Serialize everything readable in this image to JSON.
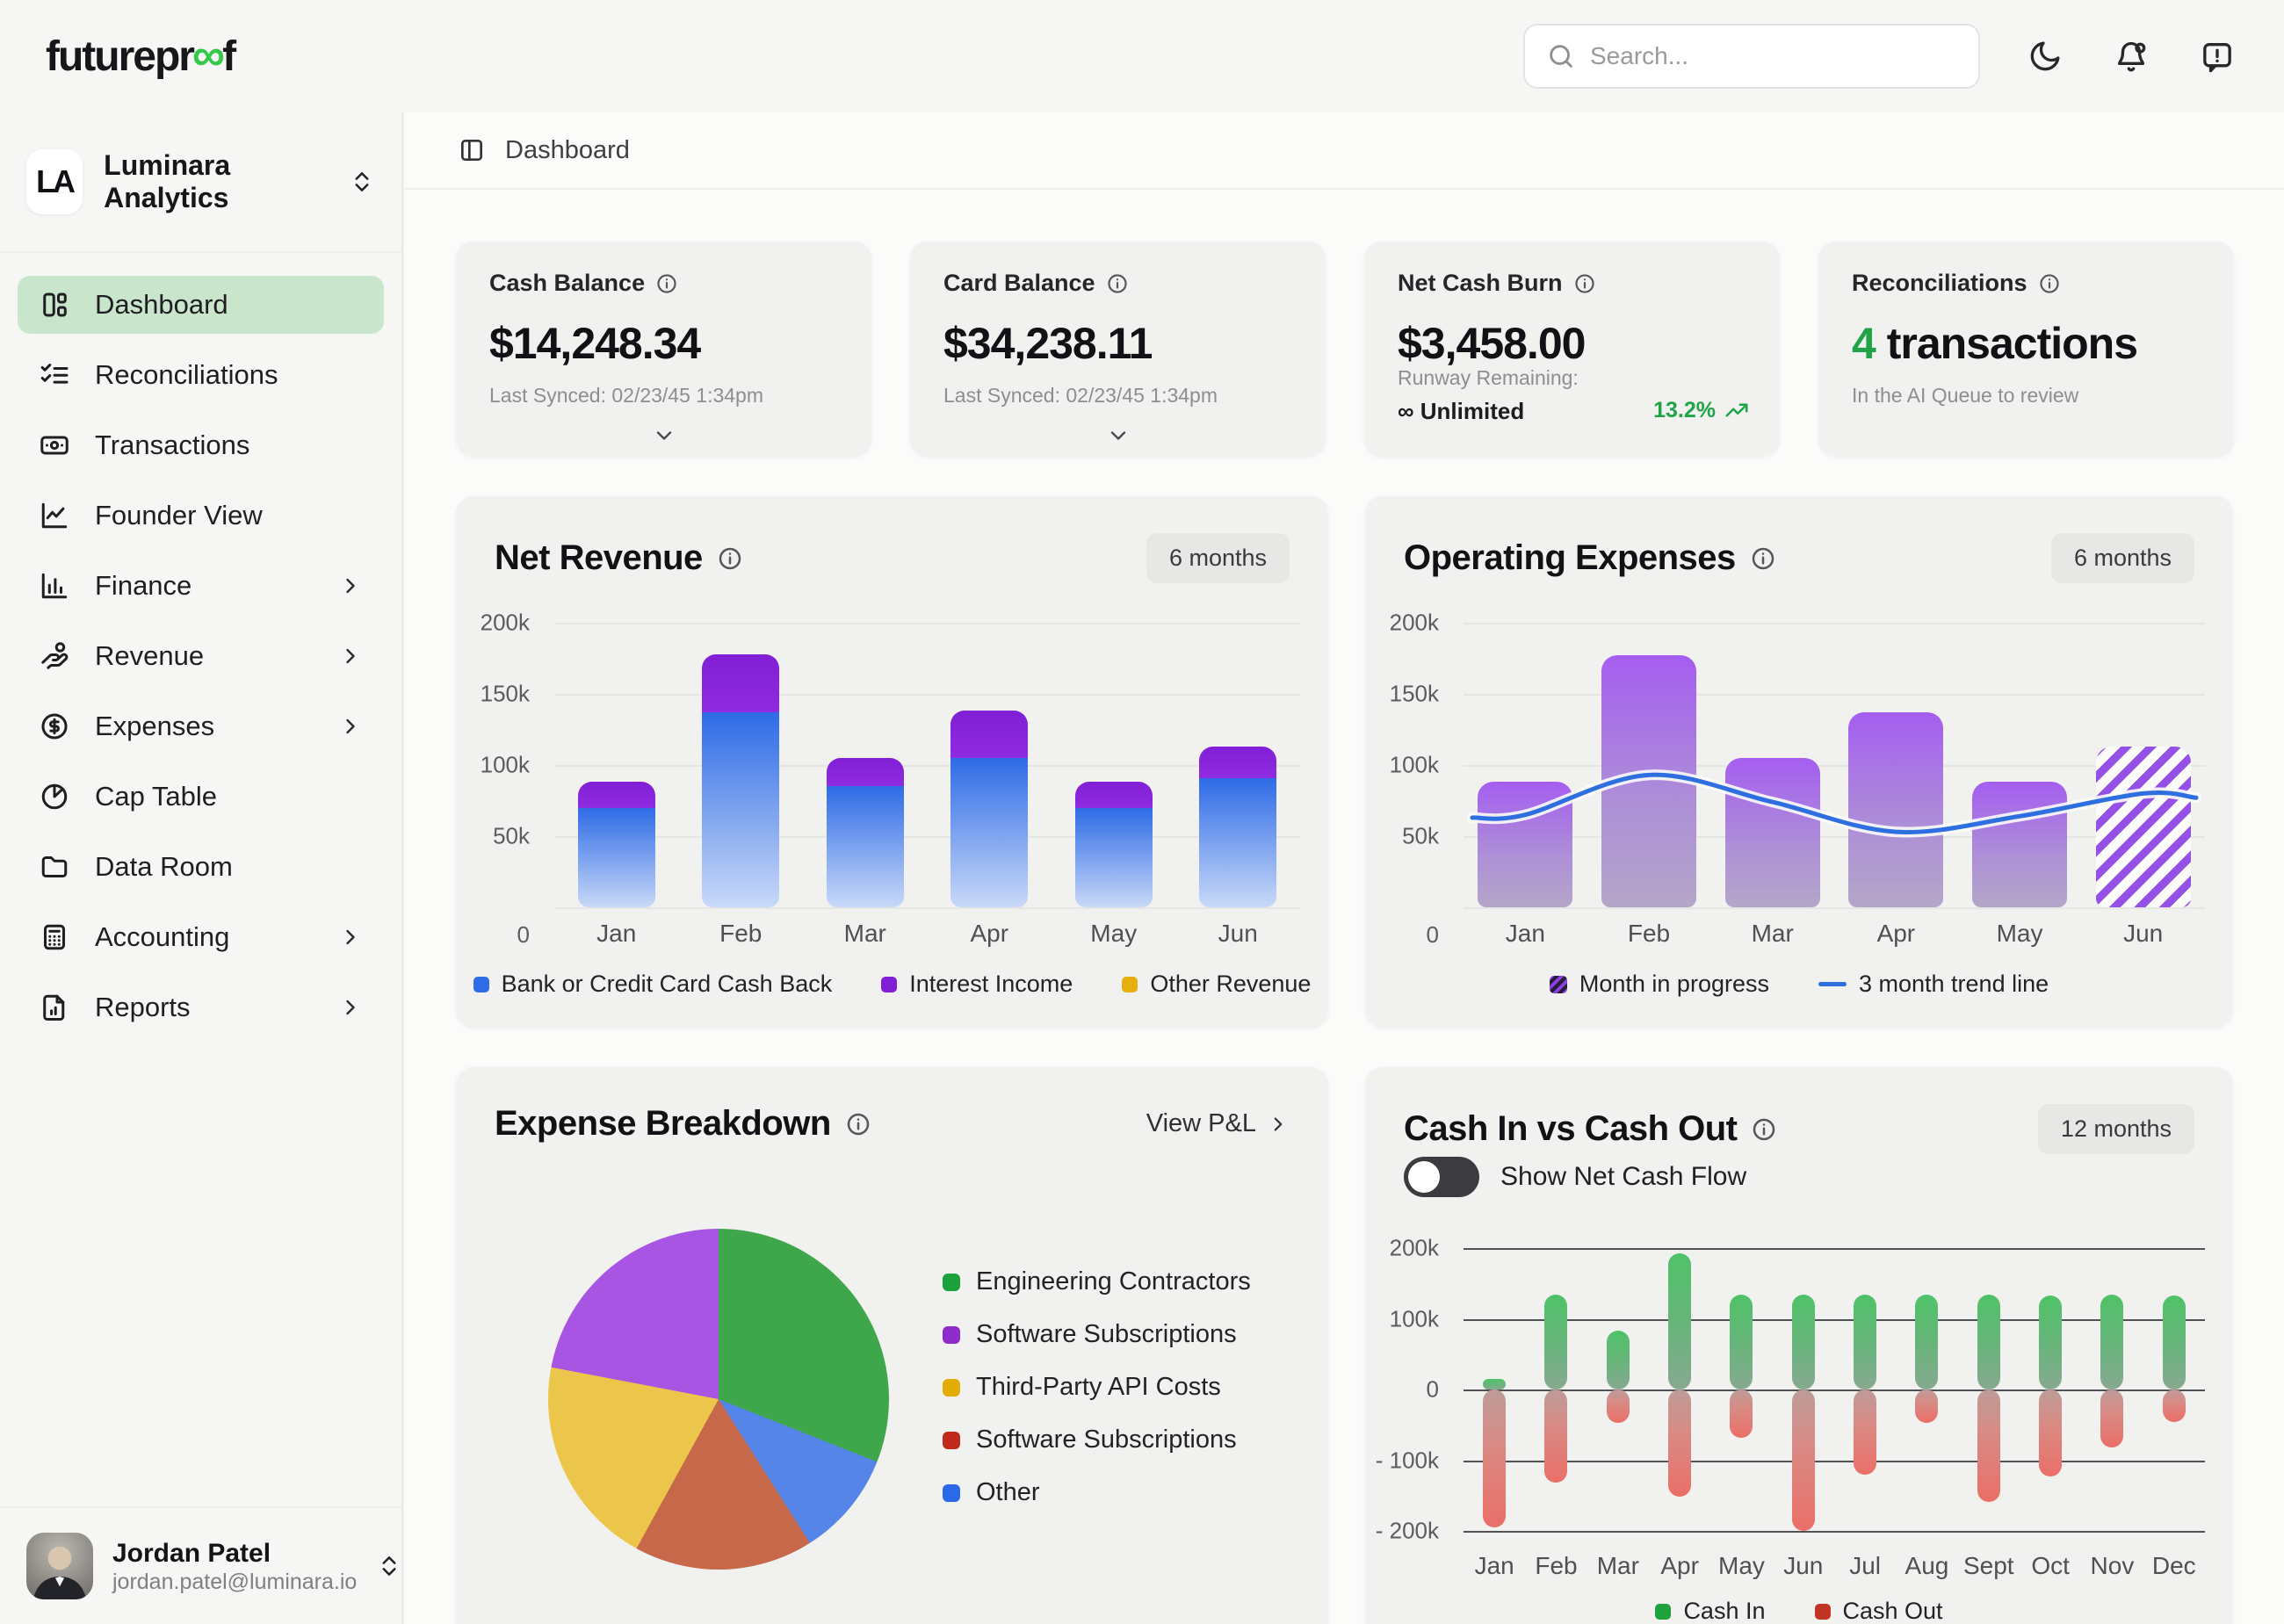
{
  "header": {
    "logo": {
      "prefix": "futurepr",
      "infinity": "∞",
      "suffix": "f"
    },
    "search_placeholder": "Search..."
  },
  "sidebar": {
    "workspace": {
      "initials": "LA",
      "name": "Luminara Analytics"
    },
    "items": [
      {
        "label": "Dashboard",
        "icon": "dashboard",
        "active": true,
        "chevron": false
      },
      {
        "label": "Reconciliations",
        "icon": "checklist",
        "active": false,
        "chevron": false
      },
      {
        "label": "Transactions",
        "icon": "banknote",
        "active": false,
        "chevron": false
      },
      {
        "label": "Founder View",
        "icon": "line-chart",
        "active": false,
        "chevron": false
      },
      {
        "label": "Finance",
        "icon": "bar-chart",
        "active": false,
        "chevron": true
      },
      {
        "label": "Revenue",
        "icon": "hand-coin",
        "active": false,
        "chevron": true
      },
      {
        "label": "Expenses",
        "icon": "dollar-circle",
        "active": false,
        "chevron": true
      },
      {
        "label": "Cap Table",
        "icon": "pie",
        "active": false,
        "chevron": false
      },
      {
        "label": "Data Room",
        "icon": "folder",
        "active": false,
        "chevron": false
      },
      {
        "label": "Accounting",
        "icon": "calculator",
        "active": false,
        "chevron": true
      },
      {
        "label": "Reports",
        "icon": "report",
        "active": false,
        "chevron": true
      }
    ],
    "user": {
      "name": "Jordan Patel",
      "email": "jordan.patel@luminara.io"
    }
  },
  "breadcrumb": {
    "label": "Dashboard"
  },
  "stat_cards": {
    "cash_balance": {
      "title": "Cash Balance",
      "value": "$14,248.34",
      "footer": "Last Synced: 02/23/45 1:34pm"
    },
    "card_balance": {
      "title": "Card Balance",
      "value": "$34,238.11",
      "footer": "Last Synced: 02/23/45 1:34pm"
    },
    "net_cash_burn": {
      "title": "Net Cash Burn",
      "value": "$3,458.00",
      "footer_label": "Runway Remaining:",
      "footer_value": "∞ Unlimited",
      "badge": "13.2%"
    },
    "reconciliations": {
      "title": "Reconciliations",
      "value_accent": "4",
      "value_rest": " transactions",
      "footer": "In the AI Queue to review"
    }
  },
  "panels": {
    "net_revenue": {
      "title": "Net Revenue",
      "period": "6 months"
    },
    "operating_expenses": {
      "title": "Operating Expenses",
      "period": "6 months"
    },
    "expense_breakdown": {
      "title": "Expense Breakdown",
      "link": "View P&L"
    },
    "cash_flow": {
      "title": "Cash In vs Cash Out",
      "period": "12 months",
      "toggle_label": "Show Net Cash Flow",
      "toggle_on": false
    }
  },
  "colors": {
    "accent_green": "#21a447",
    "active_nav_bg": "#c9e6cc",
    "logo_green": "#35c94a",
    "trend_blue": "#2e6fe0"
  },
  "chart_data": [
    {
      "id": "net_revenue",
      "type": "bar",
      "stacked": true,
      "unit": "k",
      "title": "Net Revenue",
      "ylim": [
        0,
        200
      ],
      "categories": [
        "Jan",
        "Feb",
        "Mar",
        "Apr",
        "May",
        "Jun"
      ],
      "yticks": [
        {
          "v": 200,
          "label": "200k"
        },
        {
          "v": 150,
          "label": "150k"
        },
        {
          "v": 100,
          "label": "100k"
        },
        {
          "v": 50,
          "label": "50k"
        },
        {
          "v": 0,
          "label": "0"
        }
      ],
      "series": [
        {
          "name": "Bank or Credit Card Cash Back",
          "color": "#2e6be6",
          "color_end": "#c9d9f8",
          "values": [
            70,
            137,
            85,
            105,
            70,
            91
          ]
        },
        {
          "name": "Interest Income",
          "color": "#811fd6",
          "color_end": "#8f2be0",
          "values": [
            18,
            41,
            20,
            33,
            18,
            22
          ]
        },
        {
          "name": "Other Revenue",
          "color": "#e5b00e",
          "color_end": "#e5b00e",
          "values": [
            0,
            0,
            0,
            0,
            0,
            0
          ]
        }
      ],
      "legend_position": "bottom"
    },
    {
      "id": "operating_expenses",
      "type": "bar+line",
      "unit": "k",
      "title": "Operating Expenses",
      "ylim": [
        0,
        200
      ],
      "categories": [
        "Jan",
        "Feb",
        "Mar",
        "Apr",
        "May",
        "Jun"
      ],
      "yticks": [
        {
          "v": 200,
          "label": "200k"
        },
        {
          "v": 150,
          "label": "150k"
        },
        {
          "v": 100,
          "label": "100k"
        },
        {
          "v": 50,
          "label": "50k"
        },
        {
          "v": 0,
          "label": "0"
        }
      ],
      "series": [
        {
          "name": "Operating Expenses",
          "color": "#a55ef0",
          "color_end": "#b5a6c9",
          "values": [
            88,
            177,
            105,
            137,
            88,
            113
          ]
        }
      ],
      "month_in_progress_index": 5,
      "trend": {
        "name": "3 month trend line",
        "color": "#2e6fe0",
        "values": [
          65,
          93,
          74,
          53,
          64,
          80
        ]
      },
      "legend": [
        {
          "label": "Month in progress",
          "swatch": "hatch"
        },
        {
          "label": "3 month trend line",
          "swatch": "line"
        }
      ]
    },
    {
      "id": "expense_breakdown",
      "type": "pie",
      "title": "Expense Breakdown",
      "slices": [
        {
          "label": "Engineering Contractors",
          "pct": 31,
          "color": "#3ea64b",
          "swatch": "#1aa13c"
        },
        {
          "label": "Software Subscriptions",
          "pct": 22,
          "color": "#a855e4",
          "swatch": "#8e2cc9"
        },
        {
          "label": "Third-Party API Costs",
          "pct": 20,
          "color": "#ecc64a",
          "swatch": "#e3ac07"
        },
        {
          "label": "Software Subscriptions",
          "pct": 17,
          "color": "#c8684a",
          "swatch": "#bf2a1a"
        },
        {
          "label": "Other",
          "pct": 10,
          "color": "#5585e8",
          "swatch": "#2a6ae8"
        }
      ],
      "clockwise_from_top": [
        0,
        4,
        3,
        2,
        1
      ]
    },
    {
      "id": "cash_flow",
      "type": "bar",
      "unit": "k",
      "title": "Cash In vs Cash Out",
      "ylim": [
        -200,
        200
      ],
      "categories": [
        "Jan",
        "Feb",
        "Mar",
        "Apr",
        "May",
        "Jun",
        "Jul",
        "Aug",
        "Sept",
        "Oct",
        "Nov",
        "Dec"
      ],
      "yticks": [
        {
          "v": 200,
          "label": "200k"
        },
        {
          "v": 100,
          "label": "100k"
        },
        {
          "v": 0,
          "label": "0"
        },
        {
          "v": -100,
          "label": "- 100k"
        },
        {
          "v": -200,
          "label": "- 200k"
        }
      ],
      "series": [
        {
          "name": "Cash In",
          "color": "#4fc268",
          "color_end": "#87a991",
          "swatch": "#1fa23c",
          "values": [
            15,
            134,
            83,
            192,
            134,
            134,
            134,
            134,
            134,
            133,
            134,
            133
          ]
        },
        {
          "name": "Cash Out",
          "color": "#bd9c98",
          "color_end": "#ea6f68",
          "swatch": "#c23524",
          "values": [
            -195,
            -132,
            -47,
            -152,
            -68,
            -200,
            -120,
            -47,
            -159,
            -123,
            -82,
            -46
          ]
        }
      ],
      "legend_position": "bottom"
    }
  ]
}
